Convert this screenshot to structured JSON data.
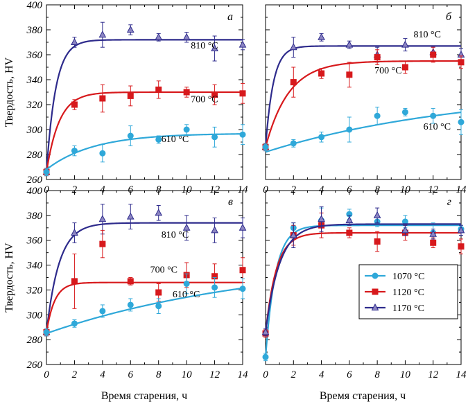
{
  "chart_data": [
    {
      "type": "scatter",
      "panel": "а",
      "ylabel": "Твердость, HV",
      "xlim": [
        0,
        14
      ],
      "ylim": [
        260,
        400
      ],
      "xticks": [
        "0",
        "2",
        "4",
        "6",
        "8",
        "10",
        "12",
        "14"
      ],
      "yticks": [
        "260",
        "280",
        "300",
        "320",
        "340",
        "360",
        "380",
        "400"
      ],
      "series": [
        {
          "color": "#2E2B8C",
          "fill": "#8C85C2",
          "marker": "triangle",
          "label": "810 °C",
          "label_at": [
            10.3,
            365
          ],
          "x": [
            0,
            2,
            4,
            6,
            8,
            10,
            12,
            14
          ],
          "y": [
            266,
            370,
            376,
            380,
            374,
            374,
            365,
            368
          ],
          "err": [
            3,
            4,
            10,
            4,
            3,
            4,
            10,
            4
          ],
          "fit": {
            "base": 266,
            "top": 372,
            "k": 1.5
          }
        },
        {
          "color": "#D7191C",
          "fill": "#D7191C",
          "marker": "square",
          "label": "700 °C",
          "label_at": [
            10.3,
            322
          ],
          "x": [
            0,
            2,
            4,
            6,
            8,
            10,
            12,
            14
          ],
          "y": [
            266,
            320,
            325,
            327,
            332,
            330,
            328,
            329
          ],
          "err": [
            3,
            4,
            11,
            8,
            7,
            4,
            8,
            8
          ],
          "fit": {
            "base": 266,
            "top": 330,
            "k": 1.1
          }
        },
        {
          "color": "#2FA8D9",
          "fill": "#2FA8D9",
          "marker": "circle",
          "label": "610 °C",
          "label_at": [
            8.2,
            290
          ],
          "x": [
            0,
            2,
            4,
            6,
            8,
            10,
            12,
            14
          ],
          "y": [
            266,
            283,
            281,
            295,
            292,
            300,
            294,
            296
          ],
          "err": [
            3,
            4,
            7,
            8,
            3,
            4,
            8,
            8
          ],
          "fit": {
            "base": 268,
            "top": 297,
            "k": 0.3
          }
        }
      ]
    },
    {
      "type": "scatter",
      "panel": "б",
      "ylabel": "",
      "xlim": [
        0,
        14
      ],
      "ylim": [
        260,
        400
      ],
      "xticks": [
        "0",
        "2",
        "4",
        "6",
        "8",
        "10",
        "12",
        "14"
      ],
      "yticks": [],
      "series": [
        {
          "color": "#2E2B8C",
          "fill": "#8C85C2",
          "marker": "triangle",
          "label": "810 °C",
          "label_at": [
            10.6,
            374
          ],
          "x": [
            0,
            2,
            4,
            6,
            8,
            10,
            12,
            14
          ],
          "y": [
            286,
            366,
            374,
            368,
            360,
            368,
            362,
            360
          ],
          "err": [
            3,
            8,
            3,
            3,
            6,
            5,
            4,
            5
          ],
          "fit": {
            "base": 286,
            "top": 367,
            "k": 1.8
          }
        },
        {
          "color": "#D7191C",
          "fill": "#D7191C",
          "marker": "square",
          "label": "700 °C",
          "label_at": [
            7.8,
            345
          ],
          "x": [
            0,
            2,
            4,
            6,
            8,
            10,
            12,
            14
          ],
          "y": [
            286,
            338,
            345,
            344,
            358,
            350,
            360,
            354
          ],
          "err": [
            3,
            12,
            4,
            10,
            6,
            5,
            6,
            5
          ],
          "fit": {
            "base": 286,
            "top": 355,
            "k": 0.6
          }
        },
        {
          "color": "#2FA8D9",
          "fill": "#2FA8D9",
          "marker": "circle",
          "label": "610 °C",
          "label_at": [
            11.3,
            300
          ],
          "x": [
            0,
            2,
            4,
            6,
            8,
            10,
            12,
            14
          ],
          "y": [
            286,
            289,
            294,
            300,
            311,
            314,
            311,
            306
          ],
          "err": [
            3,
            3,
            4,
            10,
            7,
            3,
            6,
            10
          ],
          "fit": {
            "base": 282,
            "top": 333,
            "k": 0.07
          }
        }
      ]
    },
    {
      "type": "scatter",
      "panel": "в",
      "ylabel": "Твердость, HV",
      "xlim": [
        0,
        14
      ],
      "ylim": [
        260,
        400
      ],
      "xticks": [
        "0",
        "2",
        "4",
        "6",
        "8",
        "10",
        "12",
        "14"
      ],
      "yticks": [
        "260",
        "280",
        "300",
        "320",
        "340",
        "360",
        "380",
        "400"
      ],
      "series": [
        {
          "color": "#2E2B8C",
          "fill": "#8C85C2",
          "marker": "triangle",
          "label": "810 °C",
          "label_at": [
            8.2,
            362
          ],
          "x": [
            0,
            2,
            4,
            6,
            8,
            10,
            12,
            14
          ],
          "y": [
            286,
            366,
            377,
            379,
            382,
            370,
            368,
            370
          ],
          "err": [
            3,
            8,
            12,
            10,
            6,
            10,
            10,
            8
          ],
          "fit": {
            "base": 286,
            "top": 374,
            "k": 1.1
          }
        },
        {
          "color": "#D7191C",
          "fill": "#D7191C",
          "marker": "square",
          "label": "700 °C",
          "label_at": [
            7.4,
            334
          ],
          "x": [
            0,
            2,
            4,
            6,
            8,
            10,
            12,
            14
          ],
          "y": [
            286,
            327,
            357,
            327,
            318,
            332,
            331,
            336
          ],
          "err": [
            3,
            22,
            11,
            3,
            7,
            10,
            10,
            10
          ],
          "fit": {
            "base": 286,
            "top": 326,
            "k": 1.7
          }
        },
        {
          "color": "#2FA8D9",
          "fill": "#2FA8D9",
          "marker": "circle",
          "label": "610 °C",
          "label_at": [
            9.0,
            314
          ],
          "x": [
            0,
            2,
            4,
            6,
            8,
            10,
            12,
            14
          ],
          "y": [
            286,
            293,
            303,
            308,
            307,
            325,
            322,
            321
          ],
          "err": [
            3,
            3,
            5,
            5,
            6,
            8,
            8,
            8
          ],
          "fit": {
            "base": 285,
            "top": 346,
            "k": 0.065
          }
        }
      ]
    },
    {
      "type": "scatter",
      "panel": "г",
      "ylabel": "",
      "xlim": [
        0,
        14
      ],
      "ylim": [
        260,
        400
      ],
      "xticks": [
        "0",
        "2",
        "4",
        "6",
        "8",
        "10",
        "12",
        "14"
      ],
      "yticks": [],
      "legend": {
        "placement": "right"
      },
      "series": [
        {
          "name": "1070 °C",
          "color": "#2FA8D9",
          "fill": "#2FA8D9",
          "marker": "circle",
          "x": [
            0,
            2,
            4,
            6,
            8,
            10,
            12,
            14
          ],
          "y": [
            266,
            370,
            376,
            381,
            375,
            375,
            366,
            369
          ],
          "err": [
            3,
            4,
            10,
            4,
            4,
            5,
            8,
            3
          ],
          "fit": {
            "base": 266,
            "top": 372,
            "k": 1.4
          }
        },
        {
          "name": "1120 °C",
          "color": "#D7191C",
          "fill": "#D7191C",
          "marker": "square",
          "x": [
            0,
            2,
            4,
            6,
            8,
            10,
            12,
            14
          ],
          "y": [
            285,
            364,
            372,
            366,
            359,
            366,
            358,
            355
          ],
          "err": [
            3,
            8,
            10,
            4,
            8,
            6,
            4,
            6
          ],
          "fit": {
            "base": 285,
            "top": 366,
            "k": 1.3
          }
        },
        {
          "name": "1170 °C",
          "color": "#2E2B8C",
          "fill": "#8C85C2",
          "marker": "triangle",
          "x": [
            0,
            2,
            4,
            6,
            8,
            10,
            12,
            14
          ],
          "y": [
            286,
            364,
            377,
            376,
            380,
            368,
            365,
            368
          ],
          "err": [
            3,
            10,
            10,
            4,
            6,
            4,
            4,
            4
          ],
          "fit": {
            "base": 286,
            "top": 373,
            "k": 1.0
          }
        }
      ]
    }
  ],
  "axes": {
    "xlabel_left": "Время старения, ч",
    "xlabel_right": "Время старения, ч"
  }
}
